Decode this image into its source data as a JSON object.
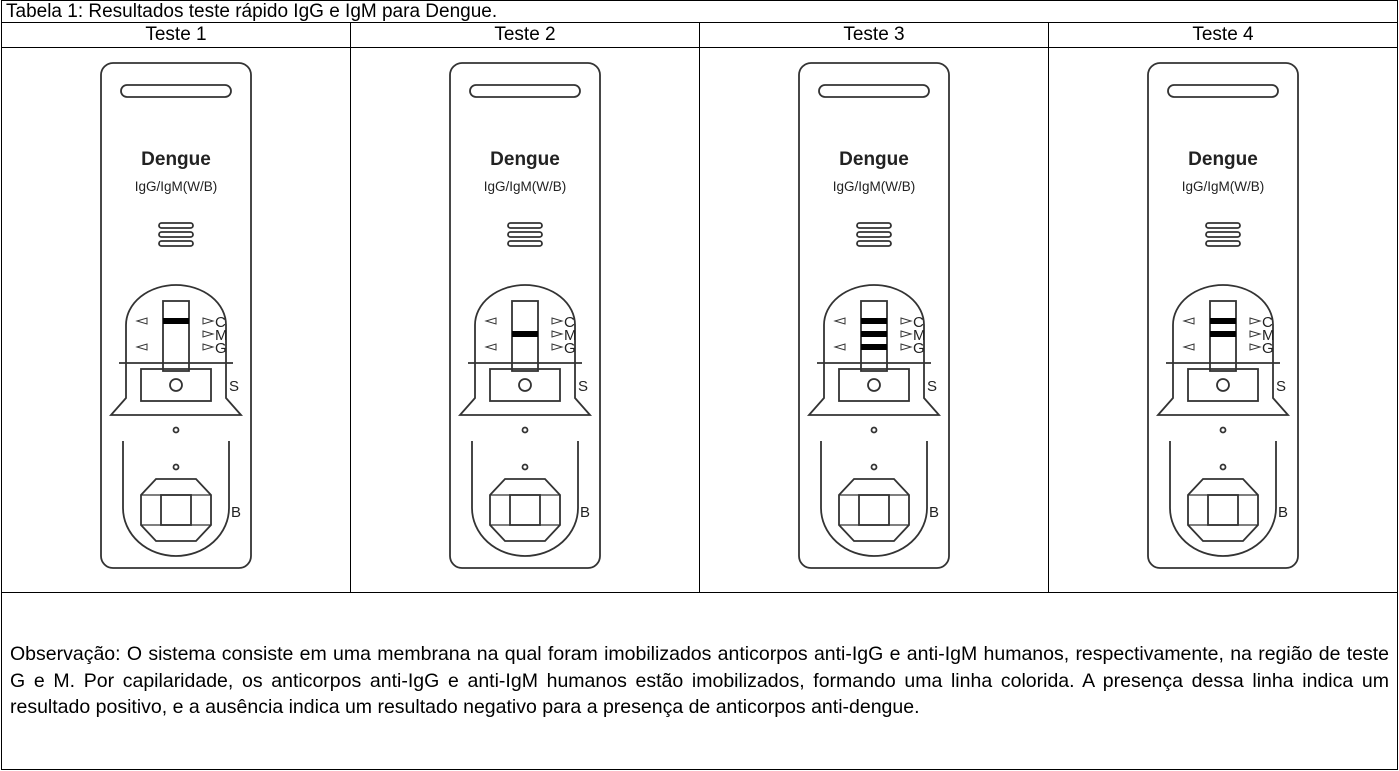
{
  "header": {
    "title": "Tabela 1: Resultados teste rápido IgG e IgM para Dengue."
  },
  "tests": [
    {
      "heading": "Teste 1",
      "brand": "Dengue",
      "subtitle": "IgG/IgM(W/B)",
      "c": "C",
      "m": "M",
      "g": "G",
      "s": "S",
      "b": "B"
    },
    {
      "heading": "Teste 2",
      "brand": "Dengue",
      "subtitle": "IgG/IgM(W/B)",
      "c": "C",
      "m": "M",
      "g": "G",
      "s": "S",
      "b": "B"
    },
    {
      "heading": "Teste 3",
      "brand": "Dengue",
      "subtitle": "IgG/IgM(W/B)",
      "c": "C",
      "m": "M",
      "g": "G",
      "s": "S",
      "b": "B"
    },
    {
      "heading": "Teste 4",
      "brand": "Dengue",
      "subtitle": "IgG/IgM(W/B)",
      "c": "C",
      "m": "M",
      "g": "G",
      "s": "S",
      "b": "B"
    }
  ],
  "observation": "Observação: O sistema consiste em uma membrana na qual foram imobilizados anticorpos anti-IgG e anti-IgM humanos, respectivamente, na região de teste G e M. Por capilaridade, os anticorpos anti-IgG e anti-IgM humanos estão imobilizados, formando uma linha colorida. A presença dessa linha indica um resultado positivo, e a ausência indica um resultado negativo para a presença de anticorpos anti-dengue."
}
